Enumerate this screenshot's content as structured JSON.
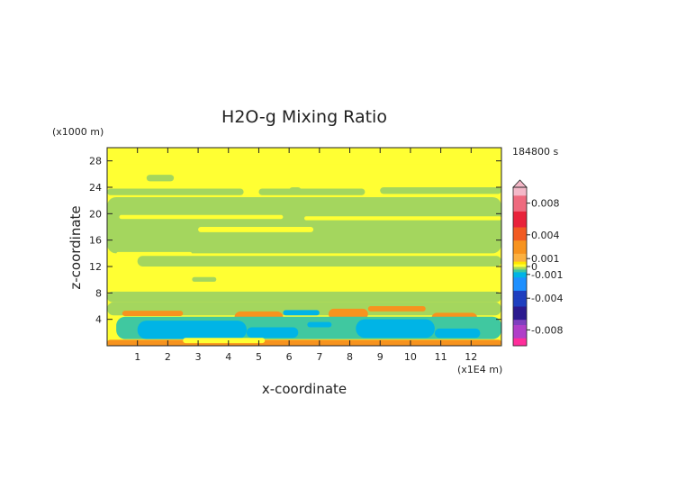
{
  "chart_data": {
    "type": "heatmap",
    "title": "H2O-g Mixing Ratio",
    "xlabel": "x-coordinate",
    "ylabel": "z-coordinate",
    "x_unit": "(x1E4 m)",
    "y_unit": "(x1000 m)",
    "time_label": "184800 s",
    "xlim": [
      0,
      13
    ],
    "ylim": [
      0,
      30
    ],
    "x_ticks": [
      1,
      2,
      3,
      4,
      5,
      6,
      7,
      8,
      9,
      10,
      11,
      12
    ],
    "y_ticks": [
      4,
      8,
      12,
      16,
      20,
      24,
      28
    ],
    "colorbar": {
      "labels": [
        "0.008",
        "0.004",
        "0.001",
        "0",
        "-0.001",
        "-0.004",
        "-0.008"
      ],
      "label_values": [
        0.008,
        0.004,
        0.001,
        0,
        -0.001,
        -0.004,
        -0.008
      ],
      "range": [
        -0.01,
        0.01
      ],
      "stops": [
        {
          "v": 0.01,
          "color": "#f4b8c8"
        },
        {
          "v": 0.008,
          "color": "#ee6a7e"
        },
        {
          "v": 0.006,
          "color": "#e8223a"
        },
        {
          "v": 0.004,
          "color": "#f15a22"
        },
        {
          "v": 0.0025,
          "color": "#f7931e"
        },
        {
          "v": 0.001,
          "color": "#fbb040"
        },
        {
          "v": 0.0005,
          "color": "#ffe600"
        },
        {
          "v": 0.0,
          "color": "#ffff33"
        },
        {
          "v": -0.0003,
          "color": "#a4d65e"
        },
        {
          "v": -0.0006,
          "color": "#40c8a0"
        },
        {
          "v": -0.001,
          "color": "#00b4e6"
        },
        {
          "v": -0.002,
          "color": "#1e90ff"
        },
        {
          "v": -0.004,
          "color": "#1f3fbf"
        },
        {
          "v": -0.006,
          "color": "#2b1a8f"
        },
        {
          "v": -0.007,
          "color": "#7f3fbf"
        },
        {
          "v": -0.008,
          "color": "#b03ec8"
        },
        {
          "v": -0.01,
          "color": "#ff2d9b"
        }
      ]
    },
    "field": {
      "background": 0.0,
      "regions": [
        {
          "x": [
            0,
            13
          ],
          "y": [
            27.5,
            30
          ],
          "v": 0.0
        },
        {
          "x": [
            1.3,
            2.2
          ],
          "y": [
            24.9,
            25.9
          ],
          "v": -0.0003
        },
        {
          "x": [
            0,
            4.5
          ],
          "y": [
            22.8,
            23.8
          ],
          "v": -0.0003
        },
        {
          "x": [
            5.0,
            8.5
          ],
          "y": [
            22.8,
            23.8
          ],
          "v": -0.0003
        },
        {
          "x": [
            9.0,
            13
          ],
          "y": [
            23.0,
            24.0
          ],
          "v": -0.0003
        },
        {
          "x": [
            6.0,
            6.4
          ],
          "y": [
            23.0,
            24.0
          ],
          "v": -0.0003
        },
        {
          "x": [
            0,
            13
          ],
          "y": [
            14.0,
            22.5
          ],
          "v": -0.0003
        },
        {
          "x": [
            0.4,
            5.8
          ],
          "y": [
            19.2,
            19.8
          ],
          "v": 0.0
        },
        {
          "x": [
            6.5,
            13
          ],
          "y": [
            19.0,
            19.6
          ],
          "v": 0.0
        },
        {
          "x": [
            3.0,
            6.8
          ],
          "y": [
            17.2,
            18.0
          ],
          "v": 0.0
        },
        {
          "x": [
            0.3,
            2.8
          ],
          "y": [
            13.6,
            14.2
          ],
          "v": 0.0
        },
        {
          "x": [
            1.0,
            13
          ],
          "y": [
            12.0,
            13.6
          ],
          "v": -0.0003
        },
        {
          "x": [
            2.8,
            3.6
          ],
          "y": [
            9.7,
            10.4
          ],
          "v": -0.0003
        },
        {
          "x": [
            0,
            13
          ],
          "y": [
            6.6,
            8.2
          ],
          "v": -0.0003
        },
        {
          "x": [
            0,
            13
          ],
          "y": [
            4.6,
            6.6
          ],
          "v": -0.0003
        },
        {
          "x": [
            0.5,
            2.5
          ],
          "y": [
            4.5,
            5.3
          ],
          "v": 0.0025
        },
        {
          "x": [
            4.2,
            5.8
          ],
          "y": [
            3.4,
            5.2
          ],
          "v": 0.0025
        },
        {
          "x": [
            7.3,
            8.6
          ],
          "y": [
            4.0,
            5.6
          ],
          "v": 0.0025
        },
        {
          "x": [
            8.6,
            10.5
          ],
          "y": [
            5.2,
            6.0
          ],
          "v": 0.0025
        },
        {
          "x": [
            10.7,
            12.2
          ],
          "y": [
            3.4,
            5.0
          ],
          "v": 0.0025
        },
        {
          "x": [
            0.3,
            13
          ],
          "y": [
            1.0,
            4.4
          ],
          "v": -0.0006
        },
        {
          "x": [
            1.0,
            4.6
          ],
          "y": [
            1.0,
            3.8
          ],
          "v": -0.001
        },
        {
          "x": [
            4.6,
            6.3
          ],
          "y": [
            1.2,
            2.8
          ],
          "v": -0.001
        },
        {
          "x": [
            6.6,
            7.4
          ],
          "y": [
            2.8,
            3.6
          ],
          "v": -0.001
        },
        {
          "x": [
            8.2,
            10.8
          ],
          "y": [
            1.2,
            4.0
          ],
          "v": -0.001
        },
        {
          "x": [
            10.8,
            12.3
          ],
          "y": [
            1.2,
            2.6
          ],
          "v": -0.001
        },
        {
          "x": [
            5.8,
            7.0
          ],
          "y": [
            4.6,
            5.4
          ],
          "v": -0.001
        },
        {
          "x": [
            0,
            13
          ],
          "y": [
            0,
            0.9
          ],
          "v": 0.0025
        },
        {
          "x": [
            2.5,
            5.2
          ],
          "y": [
            0.4,
            1.2
          ],
          "v": 0.0
        }
      ]
    }
  }
}
